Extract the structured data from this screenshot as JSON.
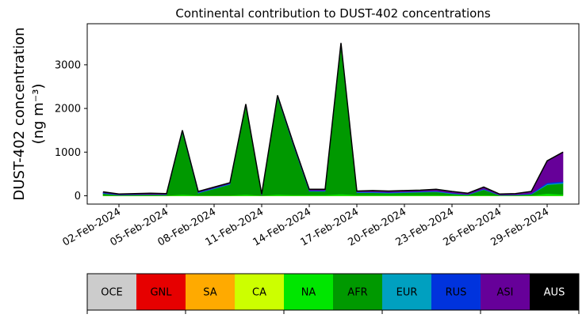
{
  "chart_data": {
    "type": "stacked_area",
    "title": "Continental contribution to DUST-402 concentrations",
    "ylabel": [
      "DUST-402 concentration",
      "(ng m⁻³)"
    ],
    "x": [
      "2024-02-01",
      "2024-02-02",
      "2024-02-03",
      "2024-02-04",
      "2024-02-05",
      "2024-02-06",
      "2024-02-07",
      "2024-02-08",
      "2024-02-09",
      "2024-02-10",
      "2024-02-11",
      "2024-02-12",
      "2024-02-13",
      "2024-02-14",
      "2024-02-15",
      "2024-02-16",
      "2024-02-17",
      "2024-02-18",
      "2024-02-19",
      "2024-02-20",
      "2024-02-21",
      "2024-02-22",
      "2024-02-23",
      "2024-02-24",
      "2024-02-25",
      "2024-02-26",
      "2024-02-27",
      "2024-02-28",
      "2024-02-29",
      "2024-03-01"
    ],
    "xlim": [
      "2024-01-31",
      "2024-03-02"
    ],
    "xticks": [
      {
        "value": "2024-02-02",
        "label": "02-Feb-2024"
      },
      {
        "value": "2024-02-05",
        "label": "05-Feb-2024"
      },
      {
        "value": "2024-02-08",
        "label": "08-Feb-2024"
      },
      {
        "value": "2024-02-11",
        "label": "11-Feb-2024"
      },
      {
        "value": "2024-02-14",
        "label": "14-Feb-2024"
      },
      {
        "value": "2024-02-17",
        "label": "17-Feb-2024"
      },
      {
        "value": "2024-02-20",
        "label": "20-Feb-2024"
      },
      {
        "value": "2024-02-23",
        "label": "23-Feb-2024"
      },
      {
        "value": "2024-02-26",
        "label": "26-Feb-2024"
      },
      {
        "value": "2024-02-29",
        "label": "29-Feb-2024"
      }
    ],
    "ylim": [
      -190,
      3940
    ],
    "yticks": [
      0,
      1000,
      2000,
      3000
    ],
    "grid": false,
    "series": [
      {
        "name": "OCE",
        "color": "#cccccc",
        "values": [
          0,
          0,
          0,
          0,
          0,
          0,
          0,
          0,
          0,
          0,
          0,
          0,
          0,
          0,
          0,
          0,
          0,
          0,
          0,
          0,
          0,
          0,
          0,
          0,
          0,
          0,
          0,
          0,
          0,
          0
        ]
      },
      {
        "name": "GNL",
        "color": "#e60000",
        "values": [
          0,
          0,
          0,
          0,
          0,
          0,
          0,
          0,
          0,
          0,
          0,
          0,
          0,
          0,
          0,
          0,
          0,
          0,
          0,
          0,
          0,
          0,
          0,
          0,
          0,
          0,
          0,
          0,
          0,
          0
        ]
      },
      {
        "name": "SA",
        "color": "#ffaa00",
        "values": [
          0,
          0,
          0,
          0,
          0,
          0,
          0,
          0,
          0,
          0,
          0,
          0,
          0,
          0,
          0,
          0,
          0,
          0,
          0,
          0,
          0,
          0,
          0,
          0,
          0,
          0,
          0,
          0,
          0,
          0
        ]
      },
      {
        "name": "CA",
        "color": "#ccff00",
        "values": [
          0,
          0,
          0,
          0,
          0,
          0,
          0,
          0,
          0,
          0,
          0,
          0,
          0,
          0,
          0,
          0,
          0,
          0,
          0,
          0,
          0,
          0,
          0,
          0,
          0,
          0,
          0,
          0,
          0,
          0
        ]
      },
      {
        "name": "NA",
        "color": "#00e600",
        "values": [
          10,
          5,
          5,
          5,
          5,
          30,
          10,
          10,
          10,
          30,
          5,
          30,
          20,
          20,
          20,
          40,
          20,
          20,
          20,
          20,
          20,
          20,
          15,
          10,
          20,
          5,
          5,
          10,
          50,
          30
        ]
      },
      {
        "name": "AFR",
        "color": "#009900",
        "values": [
          40,
          10,
          15,
          20,
          15,
          1430,
          50,
          150,
          250,
          2030,
          5,
          2230,
          1130,
          80,
          80,
          3400,
          50,
          50,
          40,
          50,
          60,
          70,
          30,
          10,
          120,
          5,
          10,
          20,
          200,
          250
        ]
      },
      {
        "name": "EUR",
        "color": "#00a0c0",
        "values": [
          10,
          5,
          5,
          5,
          5,
          10,
          10,
          10,
          10,
          10,
          5,
          10,
          10,
          10,
          10,
          20,
          10,
          10,
          10,
          10,
          10,
          10,
          10,
          5,
          10,
          5,
          5,
          10,
          20,
          20
        ]
      },
      {
        "name": "RUS",
        "color": "#0033dd",
        "values": [
          10,
          5,
          5,
          5,
          5,
          10,
          10,
          10,
          10,
          10,
          5,
          10,
          10,
          10,
          10,
          20,
          10,
          10,
          10,
          10,
          10,
          10,
          10,
          5,
          10,
          5,
          5,
          10,
          30,
          30
        ]
      },
      {
        "name": "ASI",
        "color": "#660099",
        "values": [
          20,
          15,
          20,
          25,
          20,
          20,
          20,
          20,
          20,
          20,
          20,
          20,
          30,
          30,
          30,
          20,
          20,
          30,
          30,
          30,
          30,
          40,
          35,
          30,
          40,
          20,
          25,
          50,
          500,
          670
        ]
      },
      {
        "name": "AUS",
        "color": "#000000",
        "values": [
          0,
          0,
          0,
          0,
          0,
          0,
          0,
          0,
          0,
          0,
          0,
          0,
          0,
          0,
          0,
          0,
          0,
          0,
          0,
          0,
          0,
          0,
          0,
          0,
          0,
          0,
          0,
          0,
          0,
          0
        ]
      }
    ]
  }
}
